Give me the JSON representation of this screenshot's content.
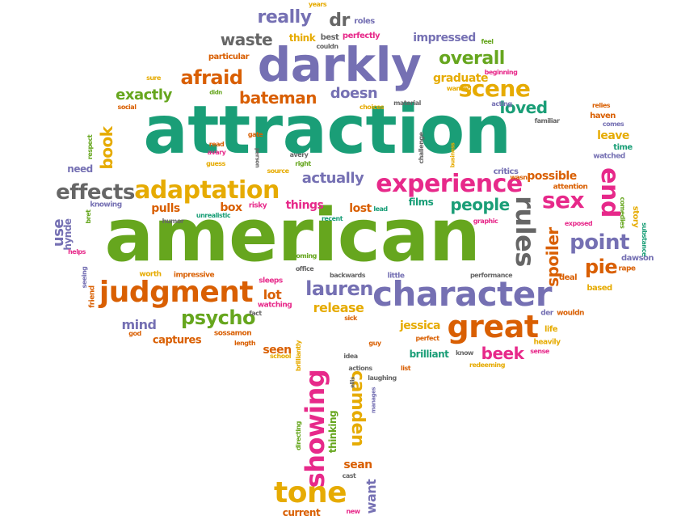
{
  "palette": {
    "green": "#1a9e77",
    "lime": "#66a61e",
    "orange": "#d95f02",
    "purple": "#7570b3",
    "pink": "#e7298a",
    "gold": "#e6ab02",
    "gray": "#666666"
  },
  "words": [
    {
      "text": "attraction",
      "color": "green"
    },
    {
      "text": "american",
      "color": "lime"
    },
    {
      "text": "darkly",
      "color": "purple"
    },
    {
      "text": "character",
      "color": "purple"
    },
    {
      "text": "judgment",
      "color": "orange"
    },
    {
      "text": "great",
      "color": "orange"
    },
    {
      "text": "adaptation",
      "color": "gold"
    },
    {
      "text": "experience",
      "color": "pink"
    },
    {
      "text": "effects",
      "color": "gray"
    },
    {
      "text": "showing",
      "color": "pink"
    },
    {
      "text": "tone",
      "color": "gold"
    },
    {
      "text": "scene",
      "color": "gold"
    },
    {
      "text": "overall",
      "color": "lime"
    },
    {
      "text": "afraid",
      "color": "orange"
    },
    {
      "text": "really",
      "color": "purple"
    },
    {
      "text": "dr",
      "color": "gray"
    },
    {
      "text": "waste",
      "color": "gray"
    },
    {
      "text": "psycho",
      "color": "lime"
    },
    {
      "text": "lauren",
      "color": "purple"
    },
    {
      "text": "point",
      "color": "purple"
    },
    {
      "text": "sex",
      "color": "pink"
    },
    {
      "text": "end",
      "color": "pink"
    },
    {
      "text": "rules",
      "color": "gray"
    },
    {
      "text": "pie",
      "color": "orange"
    },
    {
      "text": "people",
      "color": "green"
    },
    {
      "text": "loved",
      "color": "green"
    },
    {
      "text": "exactly",
      "color": "lime"
    },
    {
      "text": "bateman",
      "color": "orange"
    },
    {
      "text": "doesn",
      "color": "purple"
    },
    {
      "text": "book",
      "color": "gold"
    },
    {
      "text": "camden",
      "color": "gold"
    },
    {
      "text": "spoiler",
      "color": "orange"
    },
    {
      "text": "actually",
      "color": "purple"
    },
    {
      "text": "beek",
      "color": "pink"
    },
    {
      "text": "release",
      "color": "gold"
    },
    {
      "text": "mind",
      "color": "purple"
    },
    {
      "text": "graduate",
      "color": "gold"
    },
    {
      "text": "impressed",
      "color": "purple"
    },
    {
      "text": "lot",
      "color": "orange"
    },
    {
      "text": "use",
      "color": "purple"
    },
    {
      "text": "jessica",
      "color": "gold"
    },
    {
      "text": "sean",
      "color": "orange"
    },
    {
      "text": "want",
      "color": "purple"
    },
    {
      "text": "seen",
      "color": "orange"
    },
    {
      "text": "brilliant",
      "color": "green"
    },
    {
      "text": "captures",
      "color": "orange"
    },
    {
      "text": "lost",
      "color": "orange"
    },
    {
      "text": "things",
      "color": "pink"
    },
    {
      "text": "pulls",
      "color": "orange"
    },
    {
      "text": "box",
      "color": "orange"
    },
    {
      "text": "films",
      "color": "green"
    },
    {
      "text": "possible",
      "color": "orange"
    },
    {
      "text": "leave",
      "color": "gold"
    },
    {
      "text": "thinking",
      "color": "lime"
    },
    {
      "text": "current",
      "color": "orange"
    },
    {
      "text": "think",
      "color": "gold"
    },
    {
      "text": "perfectly",
      "color": "pink"
    },
    {
      "text": "best",
      "color": "gray"
    },
    {
      "text": "couldn",
      "color": "gray"
    },
    {
      "text": "roles",
      "color": "purple"
    },
    {
      "text": "years",
      "color": "gold"
    },
    {
      "text": "particular",
      "color": "orange"
    },
    {
      "text": "sure",
      "color": "gold"
    },
    {
      "text": "didn",
      "color": "lime"
    },
    {
      "text": "social",
      "color": "orange"
    },
    {
      "text": "need",
      "color": "purple"
    },
    {
      "text": "hynde",
      "color": "purple"
    },
    {
      "text": "bret",
      "color": "lime"
    },
    {
      "text": "knowing",
      "color": "purple"
    },
    {
      "text": "humor",
      "color": "gray"
    },
    {
      "text": "unrealistic",
      "color": "green"
    },
    {
      "text": "risky",
      "color": "pink"
    },
    {
      "text": "recent",
      "color": "green"
    },
    {
      "text": "lead",
      "color": "green"
    },
    {
      "text": "graphic",
      "color": "pink"
    },
    {
      "text": "critics",
      "color": "purple"
    },
    {
      "text": "wasn",
      "color": "orange"
    },
    {
      "text": "attention",
      "color": "orange"
    },
    {
      "text": "comedies",
      "color": "lime"
    },
    {
      "text": "story",
      "color": "gold"
    },
    {
      "text": "substance",
      "color": "green"
    },
    {
      "text": "exposed",
      "color": "pink"
    },
    {
      "text": "dawson",
      "color": "purple"
    },
    {
      "text": "rape",
      "color": "orange"
    },
    {
      "text": "based",
      "color": "gold"
    },
    {
      "text": "deal",
      "color": "orange"
    },
    {
      "text": "performance",
      "color": "gray"
    },
    {
      "text": "little",
      "color": "purple"
    },
    {
      "text": "backwards",
      "color": "gray"
    },
    {
      "text": "office",
      "color": "gray"
    },
    {
      "text": "coming",
      "color": "lime"
    },
    {
      "text": "sleeps",
      "color": "pink"
    },
    {
      "text": "watching",
      "color": "pink"
    },
    {
      "text": "fact",
      "color": "gray"
    },
    {
      "text": "sick",
      "color": "orange"
    },
    {
      "text": "worth",
      "color": "gold"
    },
    {
      "text": "impressive",
      "color": "orange"
    },
    {
      "text": "seeing",
      "color": "purple"
    },
    {
      "text": "helps",
      "color": "pink"
    },
    {
      "text": "friend",
      "color": "orange"
    },
    {
      "text": "god",
      "color": "orange"
    },
    {
      "text": "sossamon",
      "color": "orange"
    },
    {
      "text": "length",
      "color": "orange"
    },
    {
      "text": "school",
      "color": "gold"
    },
    {
      "text": "brilliantly",
      "color": "gold"
    },
    {
      "text": "idea",
      "color": "gray"
    },
    {
      "text": "guy",
      "color": "orange"
    },
    {
      "text": "actions",
      "color": "gray"
    },
    {
      "text": "list",
      "color": "orange"
    },
    {
      "text": "laughing",
      "color": "gray"
    },
    {
      "text": "ellis",
      "color": "gray"
    },
    {
      "text": "manages",
      "color": "purple"
    },
    {
      "text": "perfect",
      "color": "orange"
    },
    {
      "text": "know",
      "color": "gray"
    },
    {
      "text": "redeeming",
      "color": "gold"
    },
    {
      "text": "heavily",
      "color": "gold"
    },
    {
      "text": "sense",
      "color": "pink"
    },
    {
      "text": "life",
      "color": "gold"
    },
    {
      "text": "der",
      "color": "purple"
    },
    {
      "text": "wouldn",
      "color": "orange"
    },
    {
      "text": "directing",
      "color": "lime"
    },
    {
      "text": "cast",
      "color": "gray"
    },
    {
      "text": "new",
      "color": "pink"
    },
    {
      "text": "gate",
      "color": "orange"
    },
    {
      "text": "read",
      "color": "orange"
    },
    {
      "text": "avary",
      "color": "pink"
    },
    {
      "text": "guess",
      "color": "gold"
    },
    {
      "text": "person",
      "color": "gray"
    },
    {
      "text": "respect",
      "color": "lime"
    },
    {
      "text": "avery",
      "color": "gray"
    },
    {
      "text": "right",
      "color": "lime"
    },
    {
      "text": "source",
      "color": "gold"
    },
    {
      "text": "challenge",
      "color": "gray"
    },
    {
      "text": "business",
      "color": "gold"
    },
    {
      "text": "material",
      "color": "gray"
    },
    {
      "text": "choices",
      "color": "gold"
    },
    {
      "text": "wanted",
      "color": "gold"
    },
    {
      "text": "beginning",
      "color": "pink"
    },
    {
      "text": "feel",
      "color": "lime"
    },
    {
      "text": "acting",
      "color": "purple"
    },
    {
      "text": "familiar",
      "color": "gray"
    },
    {
      "text": "relies",
      "color": "orange"
    },
    {
      "text": "haven",
      "color": "orange"
    },
    {
      "text": "comes",
      "color": "purple"
    },
    {
      "text": "time",
      "color": "green"
    },
    {
      "text": "watched",
      "color": "purple"
    }
  ]
}
